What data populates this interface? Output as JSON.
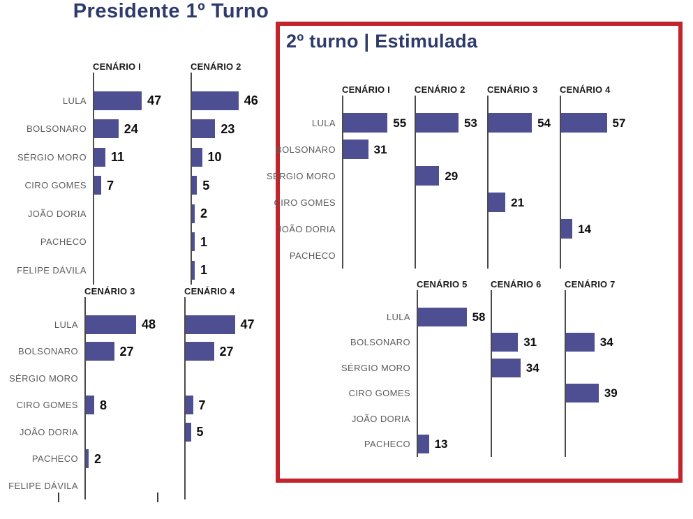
{
  "colors": {
    "bar": "#4d4f92",
    "title_text": "#2d3a6b",
    "highlight_border": "#c2242c",
    "category_label": "#5a5b5e",
    "value_label": "#0d0d0d",
    "axis": "#4a4a4a"
  },
  "chart_data": [
    {
      "type": "bar",
      "orientation": "horizontal",
      "title": "Presidente 1º Turno",
      "value_labels": true,
      "grid": false,
      "legend": false,
      "categories": [
        "LULA",
        "BOLSONARO",
        "SÉRGIO MORO",
        "CIRO GOMES",
        "JOÃO DORIA",
        "PACHECO",
        "FELIPE DÁVILA"
      ],
      "series": [
        {
          "name": "CENÁRIO I",
          "values": [
            47,
            24,
            11,
            7,
            null,
            null,
            null
          ]
        },
        {
          "name": "CENÁRIO 2",
          "values": [
            46,
            23,
            10,
            5,
            2,
            1,
            1
          ]
        },
        {
          "name": "CENÁRIO 3",
          "values": [
            48,
            27,
            null,
            8,
            null,
            2,
            null
          ]
        },
        {
          "name": "CENÁRIO 4",
          "values": [
            47,
            27,
            null,
            7,
            5,
            null,
            null
          ]
        }
      ],
      "panels": [
        {
          "series": [
            0,
            1
          ]
        },
        {
          "series": [
            2,
            3
          ]
        }
      ]
    },
    {
      "type": "bar",
      "orientation": "horizontal",
      "title": "2º turno | Estimulada",
      "highlighted": true,
      "value_labels": true,
      "grid": false,
      "legend": false,
      "categories": [
        "LULA",
        "BOLSONARO",
        "SÉRGIO MORO",
        "CIRO GOMES",
        "JOÃO DORIA",
        "PACHECO"
      ],
      "series": [
        {
          "name": "CENÁRIO I",
          "values": [
            55,
            31,
            null,
            null,
            null,
            null
          ]
        },
        {
          "name": "CENÁRIO 2",
          "values": [
            53,
            null,
            29,
            null,
            null,
            null
          ]
        },
        {
          "name": "CENÁRIO 3",
          "values": [
            54,
            null,
            null,
            21,
            null,
            null
          ]
        },
        {
          "name": "CENÁRIO 4",
          "values": [
            57,
            null,
            null,
            null,
            14,
            null
          ]
        },
        {
          "name": "CENÁRIO 5",
          "values": [
            58,
            null,
            null,
            null,
            null,
            13
          ]
        },
        {
          "name": "CENÁRIO 6",
          "values": [
            null,
            31,
            34,
            null,
            null,
            null
          ]
        },
        {
          "name": "CENÁRIO 7",
          "values": [
            null,
            34,
            null,
            39,
            null,
            null
          ]
        }
      ],
      "panels": [
        {
          "series": [
            0,
            1,
            2,
            3
          ]
        },
        {
          "series": [
            4,
            5,
            6
          ]
        }
      ]
    }
  ]
}
